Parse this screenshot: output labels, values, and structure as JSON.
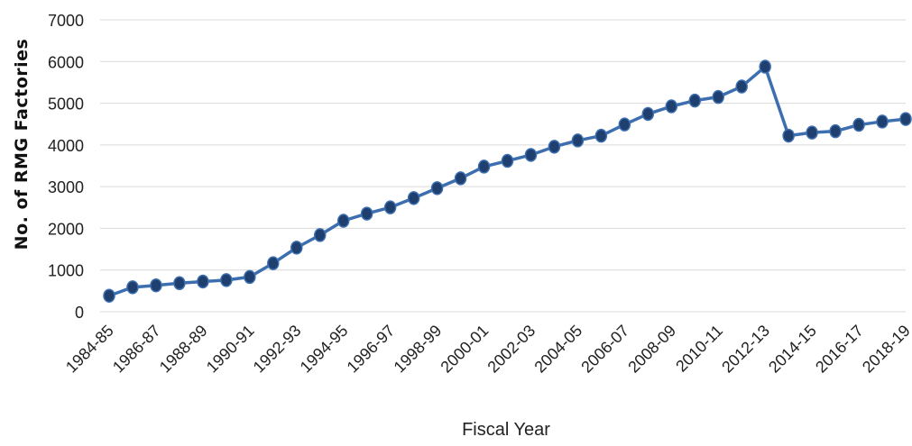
{
  "chart_data": {
    "type": "line",
    "title": "",
    "xlabel": "Fiscal Year",
    "ylabel": "No. of RMG Factories",
    "ylim": [
      0,
      7000
    ],
    "yticks": [
      0,
      1000,
      2000,
      3000,
      4000,
      5000,
      6000,
      7000
    ],
    "grid": true,
    "line_color": "#3d6fb0",
    "marker_color": "#1f3f6e",
    "categories": [
      "1984-85",
      "1985-86",
      "1986-87",
      "1987-88",
      "1988-89",
      "1989-90",
      "1990-91",
      "1991-92",
      "1992-93",
      "1993-94",
      "1994-95",
      "1995-96",
      "1996-97",
      "1997-98",
      "1998-99",
      "1999-00",
      "2000-01",
      "2001-02",
      "2002-03",
      "2003-04",
      "2004-05",
      "2005-06",
      "2006-07",
      "2007-08",
      "2008-09",
      "2009-10",
      "2010-11",
      "2011-12",
      "2012-13",
      "2013-14",
      "2014-15",
      "2015-16",
      "2016-17",
      "2017-18",
      "2018-19"
    ],
    "tick_labels": [
      "1984-85",
      "1986-87",
      "1988-89",
      "1990-91",
      "1992-93",
      "1994-95",
      "1996-97",
      "1998-99",
      "2000-01",
      "2002-03",
      "2004-05",
      "2006-07",
      "2008-09",
      "2010-11",
      "2012-13",
      "2014-15",
      "2016-17",
      "2018-19"
    ],
    "series": [
      {
        "values": [
          384,
          587,
          632,
          685,
          725,
          759,
          834,
          1163,
          1537,
          1839,
          2182,
          2353,
          2503,
          2726,
          2963,
          3200,
          3480,
          3618,
          3760,
          3957,
          4107,
          4220,
          4490,
          4743,
          4925,
          5063,
          5150,
          5400,
          5876,
          4222,
          4296,
          4328,
          4482,
          4560,
          4621
        ]
      }
    ]
  }
}
